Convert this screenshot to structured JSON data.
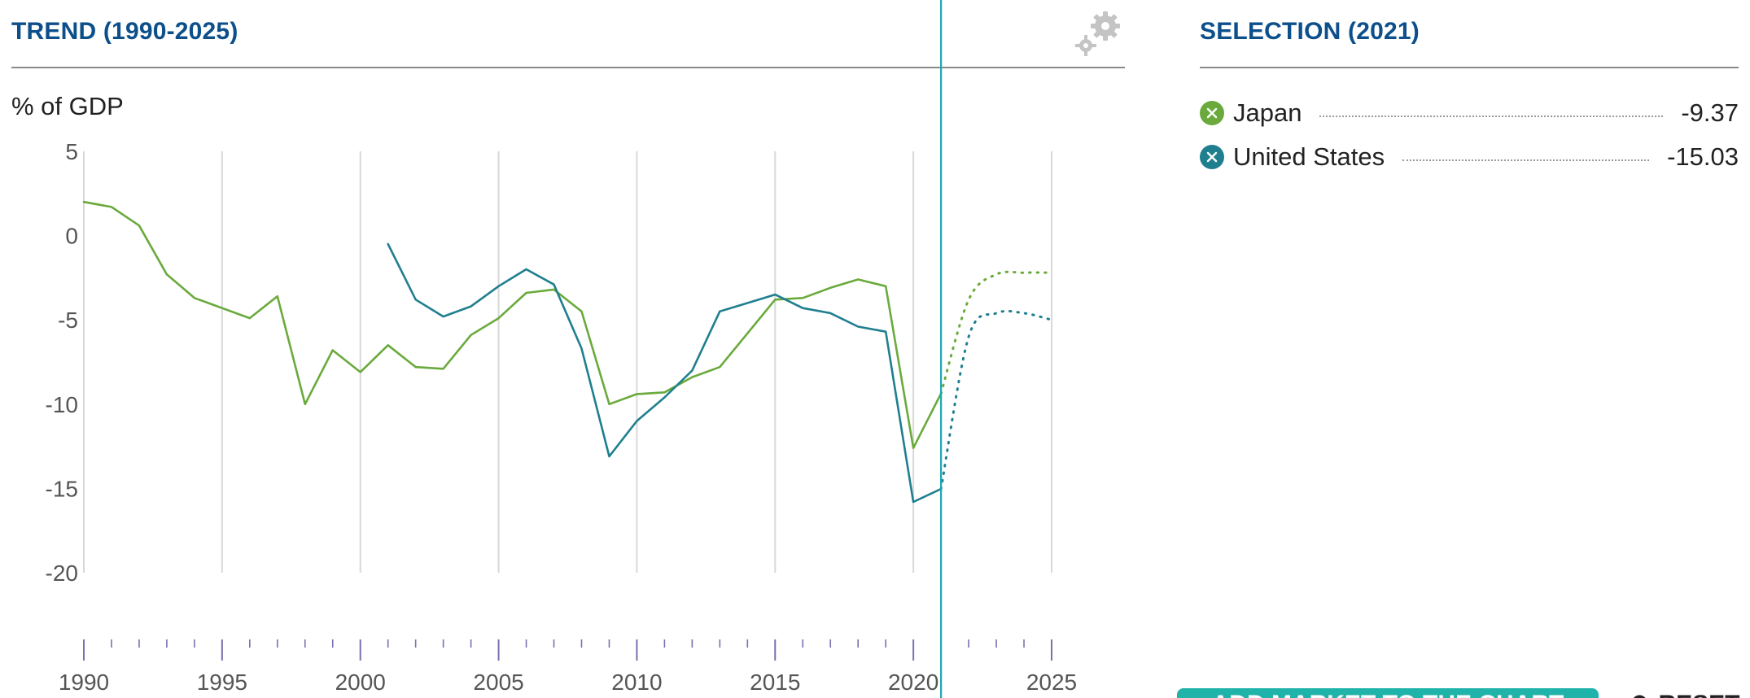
{
  "trend_panel": {
    "title": "TREND (1990-2025)",
    "unit": "% of GDP",
    "settings_icon": "gears-icon"
  },
  "selection_panel": {
    "title": "SELECTION (2021)",
    "items": [
      {
        "name": "Japan",
        "value": "-9.37",
        "color": "#6aaa3c",
        "icon": "close-circle-icon"
      },
      {
        "name": "United States",
        "value": "-15.03",
        "color": "#1f7f8f",
        "icon": "close-circle-icon"
      }
    ]
  },
  "footer": {
    "add_button_label": "ADD MARKET TO THE CHART",
    "reset_label": "RESET",
    "reset_icon": "reset-icon"
  },
  "colors": {
    "title": "#0c4f8a",
    "japan": "#6aaa3c",
    "united_states": "#1f7f8f",
    "cursor": "#1fa7b3",
    "grid": "#d8d8d8",
    "axis_ticks": "#7b6fb0"
  },
  "chart_data": {
    "type": "line",
    "ylim": [
      -20,
      5
    ],
    "xlim": [
      1990,
      2025
    ],
    "yticks": [
      5,
      0,
      -5,
      -10,
      -15,
      -20
    ],
    "xticks": [
      1990,
      1995,
      2000,
      2005,
      2010,
      2015,
      2020,
      2025
    ],
    "grid": "vertical",
    "selected_year": 2021,
    "series": [
      {
        "name": "Japan",
        "color": "#6aaa3c",
        "actual": [
          [
            1990,
            2.0
          ],
          [
            1991,
            1.7
          ],
          [
            1992,
            0.6
          ],
          [
            1993,
            -2.3
          ],
          [
            1994,
            -3.7
          ],
          [
            1995,
            -4.3
          ],
          [
            1996,
            -4.9
          ],
          [
            1997,
            -3.6
          ],
          [
            1998,
            -10.0
          ],
          [
            1999,
            -6.8
          ],
          [
            2000,
            -8.1
          ],
          [
            2001,
            -6.5
          ],
          [
            2002,
            -7.8
          ],
          [
            2003,
            -7.9
          ],
          [
            2004,
            -5.9
          ],
          [
            2005,
            -4.9
          ],
          [
            2006,
            -3.4
          ],
          [
            2007,
            -3.2
          ],
          [
            2008,
            -4.5
          ],
          [
            2009,
            -10.0
          ],
          [
            2010,
            -9.4
          ],
          [
            2011,
            -9.3
          ],
          [
            2012,
            -8.4
          ],
          [
            2013,
            -7.8
          ],
          [
            2014,
            -5.8
          ],
          [
            2015,
            -3.8
          ],
          [
            2016,
            -3.7
          ],
          [
            2017,
            -3.1
          ],
          [
            2018,
            -2.6
          ],
          [
            2019,
            -3.0
          ],
          [
            2020,
            -12.6
          ],
          [
            2021,
            -9.37
          ]
        ],
        "projected": [
          [
            2021,
            -9.37
          ],
          [
            2022,
            -3.8
          ],
          [
            2023,
            -2.3
          ],
          [
            2024,
            -2.2
          ],
          [
            2025,
            -2.2
          ]
        ]
      },
      {
        "name": "United States",
        "color": "#1f7f8f",
        "actual": [
          [
            2001,
            -0.5
          ],
          [
            2002,
            -3.8
          ],
          [
            2003,
            -4.8
          ],
          [
            2004,
            -4.2
          ],
          [
            2005,
            -3.0
          ],
          [
            2006,
            -2.0
          ],
          [
            2007,
            -2.9
          ],
          [
            2008,
            -6.7
          ],
          [
            2009,
            -13.1
          ],
          [
            2010,
            -11.0
          ],
          [
            2011,
            -9.6
          ],
          [
            2012,
            -8.0
          ],
          [
            2013,
            -4.5
          ],
          [
            2014,
            -4.0
          ],
          [
            2015,
            -3.5
          ],
          [
            2016,
            -4.3
          ],
          [
            2017,
            -4.6
          ],
          [
            2018,
            -5.4
          ],
          [
            2019,
            -5.7
          ],
          [
            2020,
            -15.8
          ],
          [
            2021,
            -15.03
          ]
        ],
        "projected": [
          [
            2021,
            -15.03
          ],
          [
            2022,
            -6.0
          ],
          [
            2023,
            -4.6
          ],
          [
            2024,
            -4.6
          ],
          [
            2025,
            -5.0
          ]
        ]
      }
    ]
  }
}
